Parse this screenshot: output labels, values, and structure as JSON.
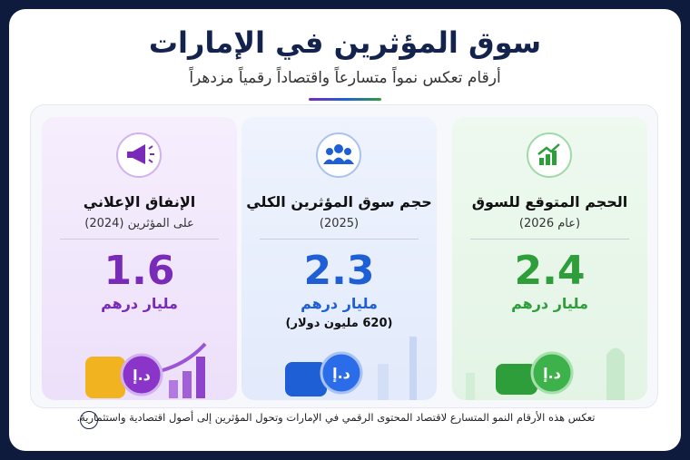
{
  "header": {
    "title": "سوق المؤثرين في الإمارات",
    "subtitle": "أرقام تعكس نمواً متسارعاً واقتصاداً رقمياً مزدهراً"
  },
  "cards": [
    {
      "title": "الحجم المتوقع للسوق",
      "subtitle": "(عام 2026)",
      "value": "2.4",
      "unit": "مليار درهم"
    },
    {
      "title": "حجم سوق المؤثرين الكلي",
      "subtitle": "(2025)",
      "value": "2.3",
      "unit": "مليار درهم",
      "note": "(620 مليون دولار)"
    },
    {
      "title": "الإنفاق الإعلاني",
      "subtitle": "على المؤثرين (2024)",
      "value": "1.6",
      "unit": "مليار درهم"
    }
  ],
  "footer": {
    "text": "تعكس هذه الأرقام النمو المتسارع لاقتصاد المحتوى الرقمي في الإمارات وتحول المؤثرين إلى أصول اقتصادية واستثمارية."
  }
}
